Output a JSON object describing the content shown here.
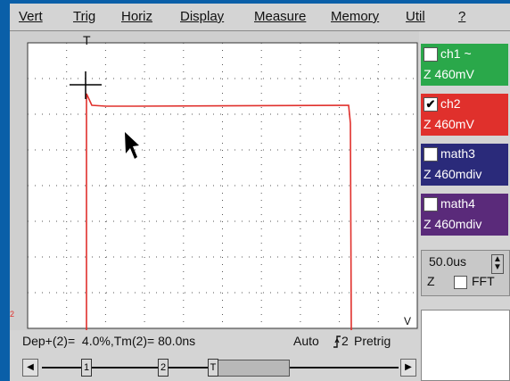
{
  "menu": [
    "Vert",
    "Trig",
    "Horiz",
    "Display",
    "Measure",
    "Memory",
    "Util",
    "?"
  ],
  "plot": {
    "trigger_marker": "T",
    "left_marker": "2",
    "right_marker": "V"
  },
  "channels": [
    {
      "name": "ch1 ~",
      "scale": "Z  460mV",
      "checked": false,
      "color": "#2aa84a"
    },
    {
      "name": "ch2",
      "scale": "Z  460mV",
      "checked": true,
      "color": "#e0302c"
    },
    {
      "name": "math3",
      "scale": "Z  460mdiv",
      "checked": false,
      "color": "#2a2a7a"
    },
    {
      "name": "math4",
      "scale": "Z  460mdiv",
      "checked": false,
      "color": "#5a2a7a"
    }
  ],
  "timebase": {
    "value": "50.0us",
    "z": "Z",
    "fft": "FFT"
  },
  "status": {
    "measurement": "Dep+(2)=  4.0%,Tm(2)= 80.0ns",
    "mode": "Auto",
    "trig_source": "2",
    "pretrig": "Pretrig"
  },
  "scroll": {
    "marker1": "1",
    "marker2": "2",
    "markerT": "T"
  },
  "colors": {
    "trace": "#e0302c",
    "background": "#0a5fa8",
    "grid": "#555555"
  }
}
